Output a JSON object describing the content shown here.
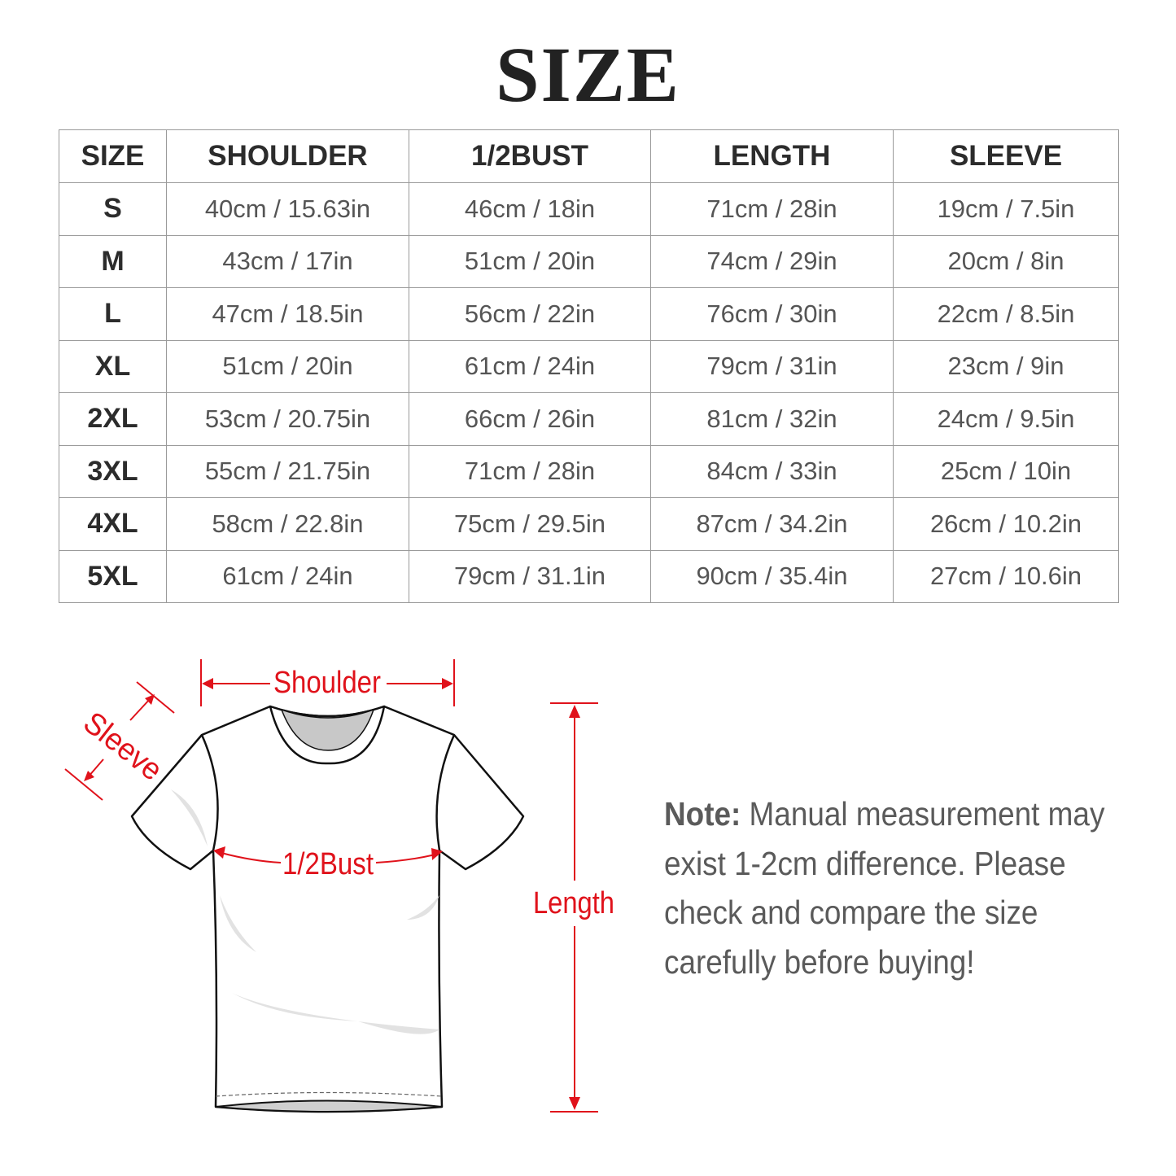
{
  "title": "SIZE",
  "table": {
    "headers": [
      "SIZE",
      "SHOULDER",
      "1/2BUST",
      "LENGTH",
      "SLEEVE"
    ],
    "rows": [
      [
        "S",
        "40cm / 15.63in",
        "46cm / 18in",
        "71cm / 28in",
        "19cm / 7.5in"
      ],
      [
        "M",
        "43cm / 17in",
        "51cm / 20in",
        "74cm / 29in",
        "20cm / 8in"
      ],
      [
        "L",
        "47cm / 18.5in",
        "56cm / 22in",
        "76cm / 30in",
        "22cm / 8.5in"
      ],
      [
        "XL",
        "51cm / 20in",
        "61cm / 24in",
        "79cm / 31in",
        "23cm / 9in"
      ],
      [
        "2XL",
        "53cm / 20.75in",
        "66cm / 26in",
        "81cm / 32in",
        "24cm / 9.5in"
      ],
      [
        "3XL",
        "55cm / 21.75in",
        "71cm / 28in",
        "84cm / 33in",
        "25cm / 10in"
      ],
      [
        "4XL",
        "58cm / 22.8in",
        "75cm / 29.5in",
        "87cm / 34.2in",
        "26cm / 10.2in"
      ],
      [
        "5XL",
        "61cm / 24in",
        "79cm / 31.1in",
        "90cm / 35.4in",
        "27cm / 10.6in"
      ]
    ]
  },
  "diagram": {
    "labels": {
      "shoulder": "Shoulder",
      "sleeve": "Sleeve",
      "bust": "1/2Bust",
      "length": "Length"
    },
    "accent_color": "#e0121b"
  },
  "note": {
    "label": "Note:",
    "text": "Manual measurement may exist 1-2cm difference. Please check and compare the size carefully before buying!"
  }
}
